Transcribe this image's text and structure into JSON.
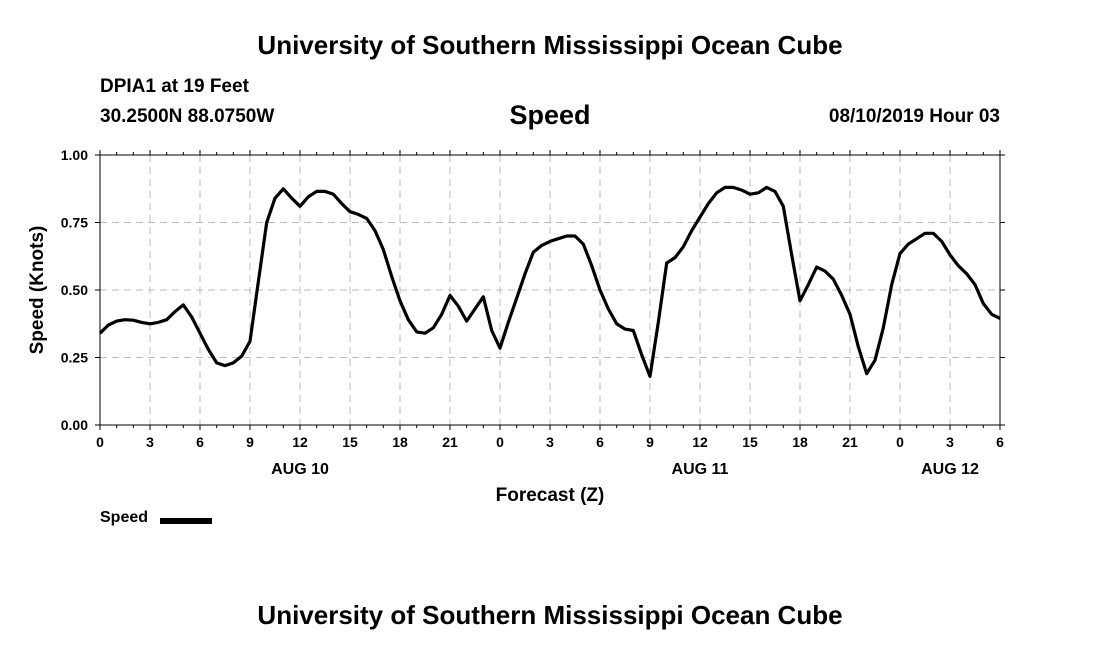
{
  "header": {
    "title": "University of Southern Mississippi Ocean Cube",
    "station": "DPIA1 at 19 Feet",
    "coords": "30.2500N 88.0750W",
    "subtitle": "Speed",
    "timestamp": "08/10/2019 Hour 03"
  },
  "footer": {
    "title": "University of Southern Mississippi Ocean Cube"
  },
  "legend": {
    "label": "Speed"
  },
  "chart_data": {
    "type": "line",
    "title": "Speed",
    "xlabel": "Forecast (Z)",
    "ylabel": "Speed (Knots)",
    "ylim": [
      0,
      1
    ],
    "xlim": [
      0,
      54
    ],
    "grid": true,
    "legend_position": "bottom-left",
    "y_ticks": [
      "0.00",
      "0.25",
      "0.50",
      "0.75",
      "1.00"
    ],
    "x_tick_labels": [
      "0",
      "3",
      "6",
      "9",
      "12",
      "15",
      "18",
      "21",
      "0",
      "3",
      "6",
      "9",
      "12",
      "15",
      "18",
      "21",
      "0",
      "3",
      "6"
    ],
    "day_labels": [
      {
        "label": "AUG 10",
        "hour": 12
      },
      {
        "label": "AUG 11",
        "hour": 36
      },
      {
        "label": "AUG 12",
        "hour": 51
      }
    ],
    "series": [
      {
        "name": "Speed",
        "x": [
          0,
          0.5,
          1,
          1.5,
          2,
          2.5,
          3,
          3.5,
          4,
          4.5,
          5,
          5.5,
          6,
          6.5,
          7,
          7.5,
          8,
          8.5,
          9,
          9.5,
          10,
          10.5,
          11,
          11.5,
          12,
          12.5,
          13,
          13.5,
          14,
          14.5,
          15,
          15.5,
          16,
          16.5,
          17,
          17.5,
          18,
          18.5,
          19,
          19.5,
          20,
          20.5,
          21,
          21.5,
          22,
          22.5,
          23,
          23.5,
          24,
          24.5,
          25,
          25.5,
          26,
          26.5,
          27,
          27.5,
          28,
          28.5,
          29,
          29.5,
          30,
          30.5,
          31,
          31.5,
          32,
          32.5,
          33,
          33.5,
          34,
          34.5,
          35,
          35.5,
          36,
          36.5,
          37,
          37.5,
          38,
          38.5,
          39,
          39.5,
          40,
          40.5,
          41,
          41.5,
          42,
          42.5,
          43,
          43.5,
          44,
          44.5,
          45,
          45.5,
          46,
          46.5,
          47,
          47.5,
          48,
          48.5,
          49,
          49.5,
          50,
          50.5,
          51,
          51.5,
          52,
          52.5,
          53,
          53.5,
          54
        ],
        "values": [
          0.34,
          0.37,
          0.385,
          0.39,
          0.388,
          0.38,
          0.375,
          0.38,
          0.39,
          0.42,
          0.445,
          0.4,
          0.34,
          0.28,
          0.23,
          0.22,
          0.23,
          0.255,
          0.31,
          0.53,
          0.75,
          0.84,
          0.875,
          0.84,
          0.81,
          0.845,
          0.865,
          0.865,
          0.855,
          0.82,
          0.79,
          0.78,
          0.765,
          0.72,
          0.65,
          0.55,
          0.46,
          0.39,
          0.345,
          0.34,
          0.36,
          0.41,
          0.48,
          0.44,
          0.385,
          0.43,
          0.475,
          0.35,
          0.285,
          0.38,
          0.47,
          0.56,
          0.64,
          0.665,
          0.68,
          0.69,
          0.7,
          0.7,
          0.67,
          0.59,
          0.5,
          0.43,
          0.375,
          0.355,
          0.35,
          0.26,
          0.18,
          0.38,
          0.6,
          0.62,
          0.66,
          0.72,
          0.77,
          0.82,
          0.86,
          0.88,
          0.88,
          0.87,
          0.855,
          0.86,
          0.88,
          0.865,
          0.81,
          0.63,
          0.46,
          0.52,
          0.585,
          0.57,
          0.54,
          0.48,
          0.41,
          0.29,
          0.19,
          0.24,
          0.36,
          0.52,
          0.635,
          0.67,
          0.69,
          0.71,
          0.71,
          0.68,
          0.63,
          0.59,
          0.56,
          0.52,
          0.45,
          0.41,
          0.395
        ]
      }
    ]
  }
}
